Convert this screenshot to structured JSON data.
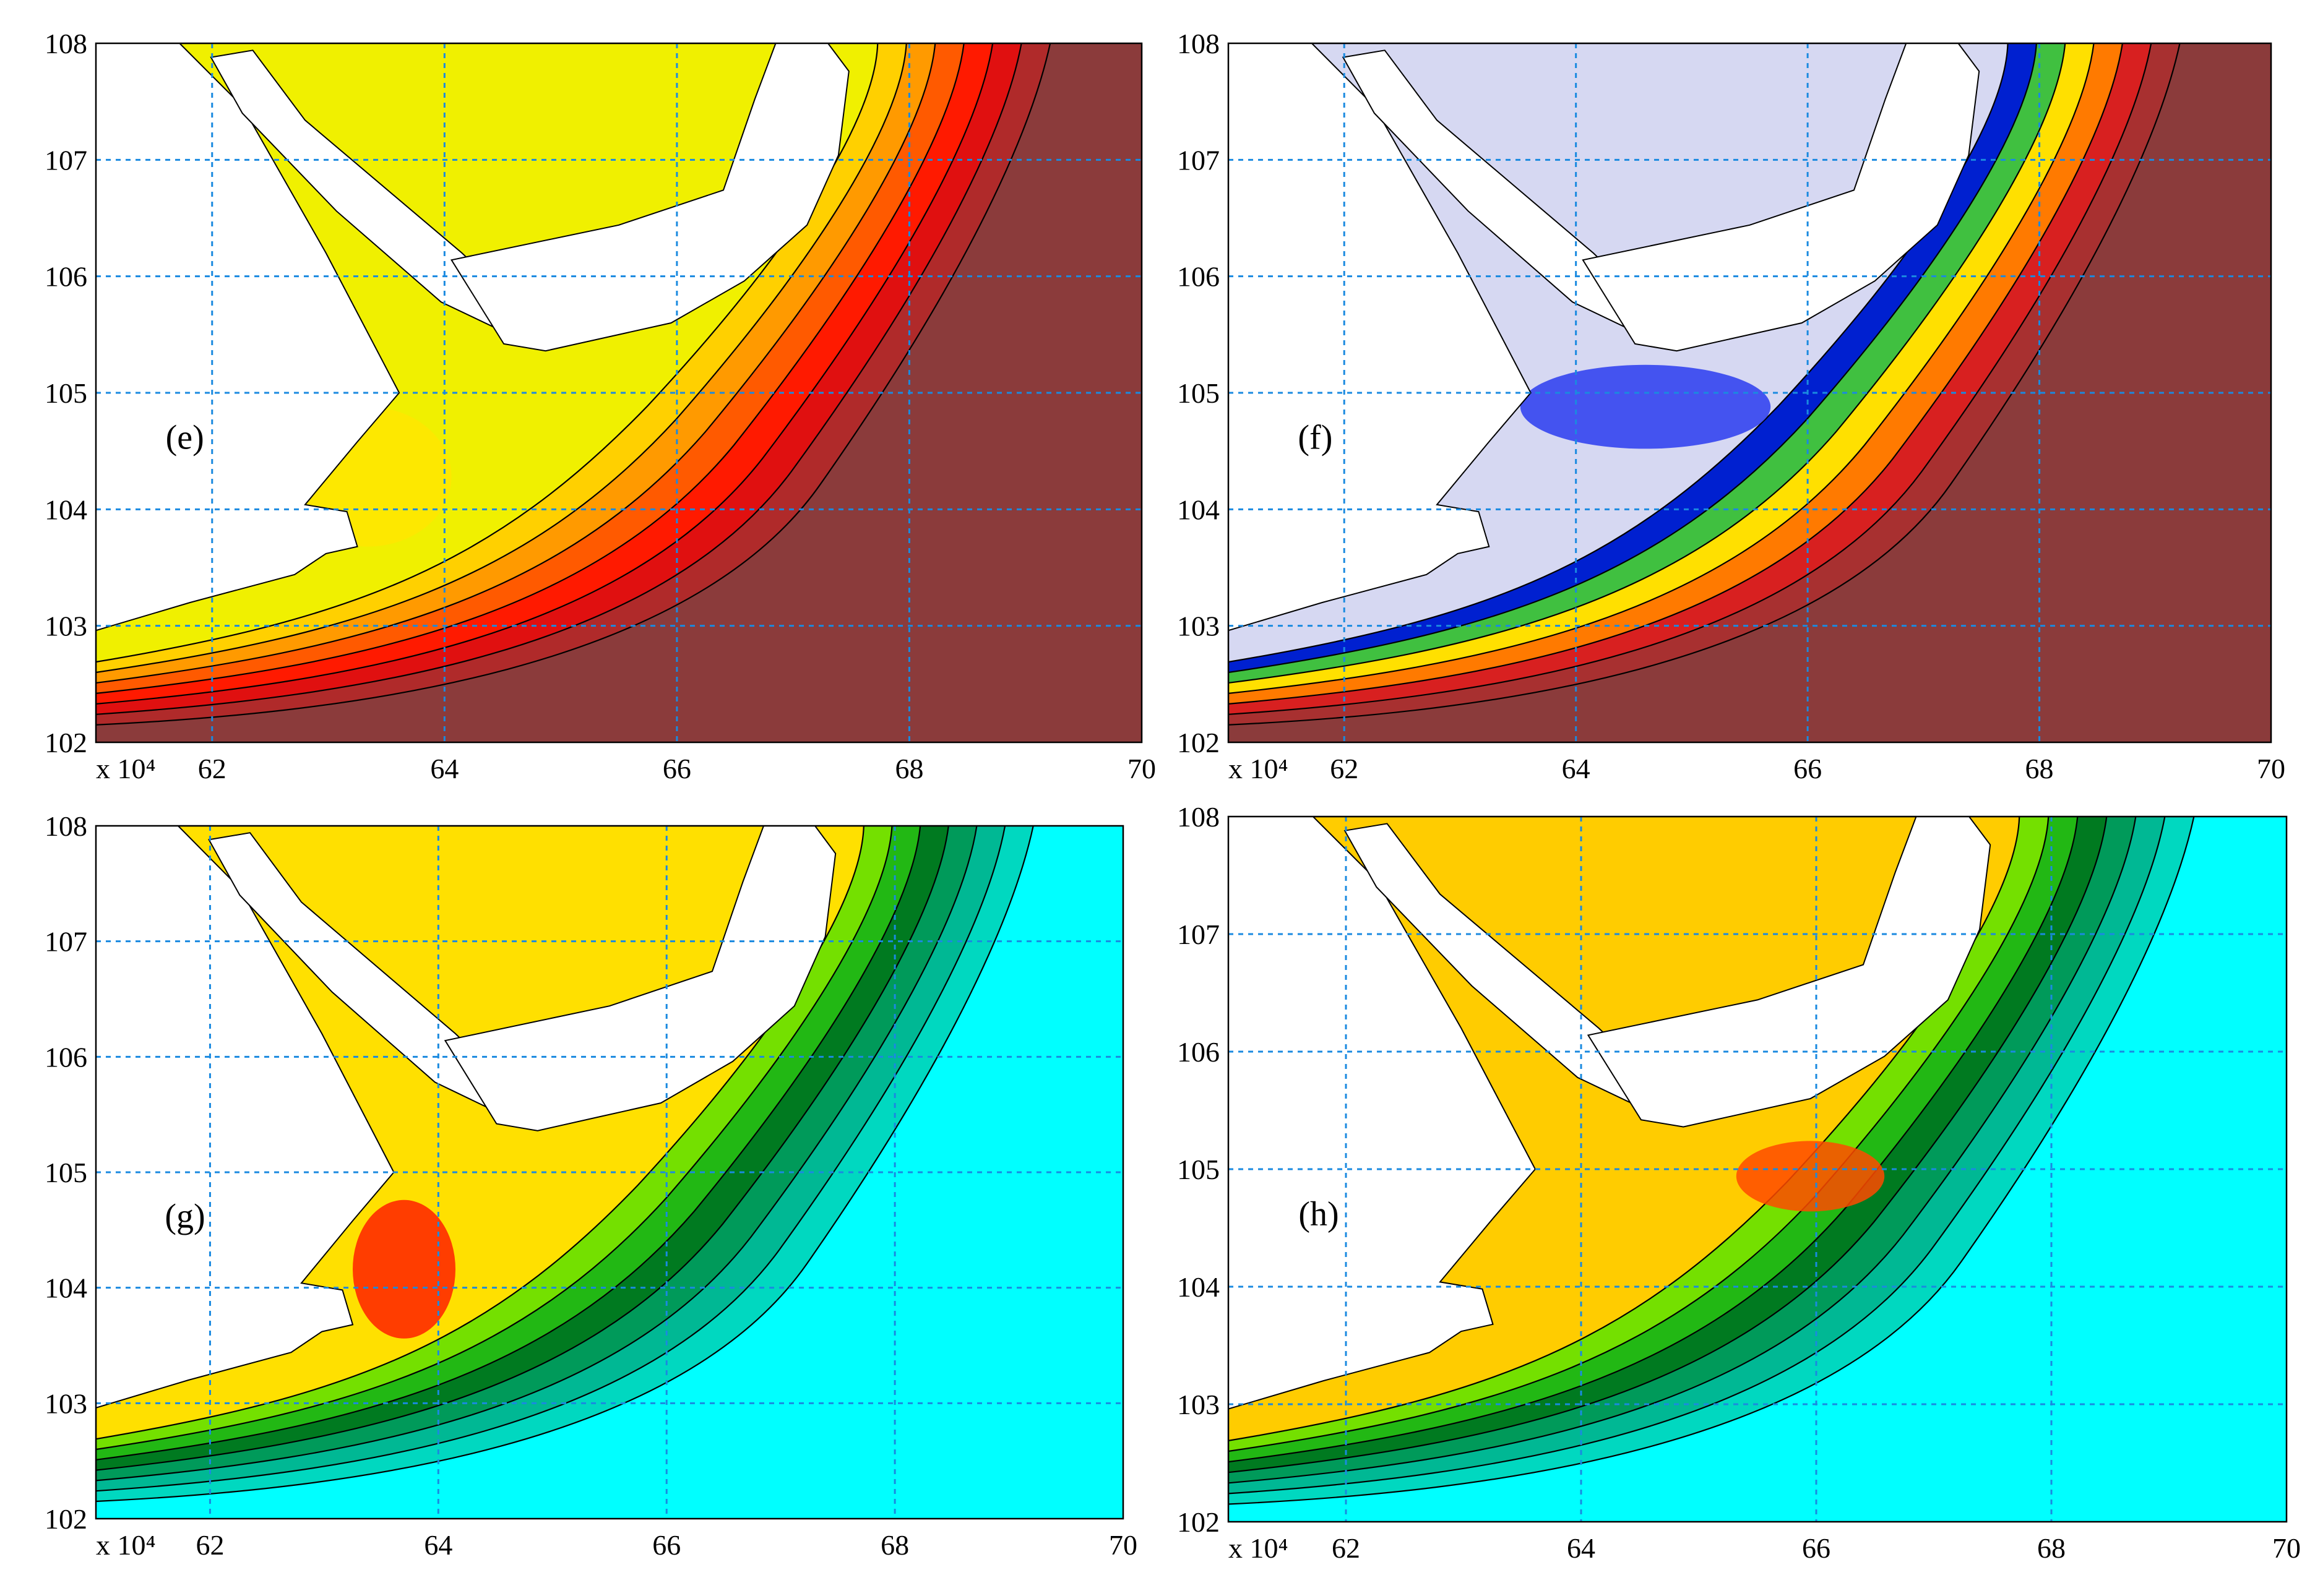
{
  "chart_data": [
    {
      "type": "heatmap",
      "panel_label": "(e)",
      "x_ticks": [
        62,
        64,
        66,
        68,
        70
      ],
      "y_ticks": [
        102,
        103,
        104,
        105,
        106,
        107,
        108
      ],
      "x_multiplier_label": "x 10⁴",
      "xlim": [
        61.0,
        70.0
      ],
      "ylim": [
        102,
        108
      ],
      "grid": true,
      "palette": [
        "#8b3b3b",
        "#ff0000",
        "#ff6a00",
        "#ffd400",
        "#c8f000",
        "#3cc300",
        "#00b4b4",
        "#2030e0"
      ]
    },
    {
      "type": "heatmap",
      "panel_label": "(f)",
      "x_ticks": [
        62,
        64,
        66,
        68,
        70
      ],
      "y_ticks": [
        102,
        103,
        104,
        105,
        106,
        107,
        108
      ],
      "x_multiplier_label": "x 10⁴",
      "xlim": [
        61.0,
        70.0
      ],
      "ylim": [
        102,
        108
      ],
      "grid": true,
      "palette": [
        "#8b3b3b",
        "#e02020",
        "#ff8a00",
        "#ffe000",
        "#40c040",
        "#0030e0",
        "#6070f0",
        "#d6d8f2"
      ]
    },
    {
      "type": "heatmap",
      "panel_label": "(g)",
      "x_ticks": [
        62,
        64,
        66,
        68,
        70
      ],
      "y_ticks": [
        102,
        103,
        104,
        105,
        106,
        107,
        108
      ],
      "x_multiplier_label": "x 10⁴",
      "xlim": [
        61.0,
        70.0
      ],
      "ylim": [
        102,
        108
      ],
      "grid": true,
      "palette": [
        "#00ffff",
        "#00d8c0",
        "#00b080",
        "#008a20",
        "#22b814",
        "#74e000",
        "#ffe000",
        "#ff5000"
      ]
    },
    {
      "type": "heatmap",
      "panel_label": "(h)",
      "x_ticks": [
        62,
        64,
        66,
        68,
        70
      ],
      "y_ticks": [
        102,
        103,
        104,
        105,
        106,
        107,
        108
      ],
      "x_multiplier_label": "x 10⁴",
      "xlim": [
        61.0,
        70.0
      ],
      "ylim": [
        102,
        108
      ],
      "grid": true,
      "palette": [
        "#00ffff",
        "#00d8c0",
        "#00b080",
        "#008a20",
        "#22b814",
        "#74e000",
        "#ffcc00",
        "#ff3000"
      ]
    }
  ]
}
